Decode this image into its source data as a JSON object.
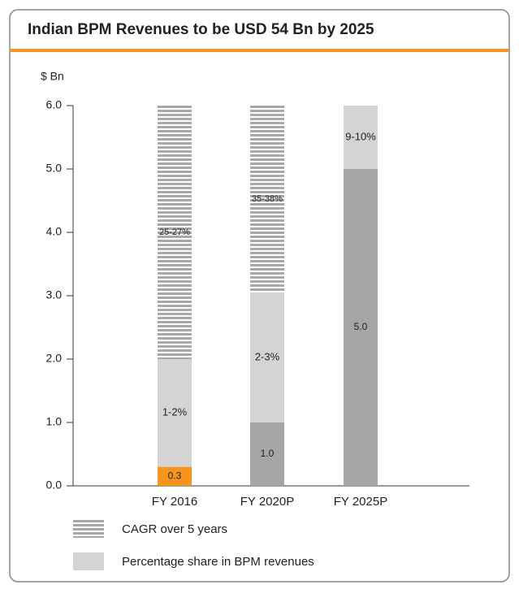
{
  "chart_data": {
    "type": "stacked-bar",
    "title": "Indian BPM Revenues to be USD 54 Bn by 2025",
    "y_axis_label": "$ Bn",
    "categories": [
      "FY 2016",
      "FY 2020P",
      "FY 2025P"
    ],
    "series": [
      {
        "colors": [
          "#f7941d",
          "#a6a6a6",
          "#a6a6a6"
        ],
        "values": [
          0.3,
          1.0,
          5.0
        ],
        "value_labels": [
          "0.3",
          "1.0",
          "5.0"
        ]
      },
      {
        "name": "Percentage share in BPM revenues",
        "color": "#d4d4d4",
        "values": [
          1.7,
          2.05,
          1.0
        ],
        "labels": [
          "1-2%",
          "2-3%",
          "9-10%"
        ]
      },
      {
        "name": "CAGR over 5 years",
        "color": "#a8a8a8",
        "pattern": "horizontal-stripes",
        "values": [
          4.0,
          2.95,
          null
        ],
        "labels": [
          "25-27%",
          "35-38%",
          null
        ]
      }
    ],
    "ylim": [
      0,
      6
    ],
    "yticks": [
      {
        "value": 0,
        "label": "0.0"
      },
      {
        "value": 1,
        "label": "1.0"
      },
      {
        "value": 2,
        "label": "2.0"
      },
      {
        "value": 3,
        "label": "3.0"
      },
      {
        "value": 4,
        "label": "4.0"
      },
      {
        "value": 5,
        "label": "5.0"
      },
      {
        "value": 6,
        "label": "6.0"
      }
    ],
    "grid": false
  }
}
